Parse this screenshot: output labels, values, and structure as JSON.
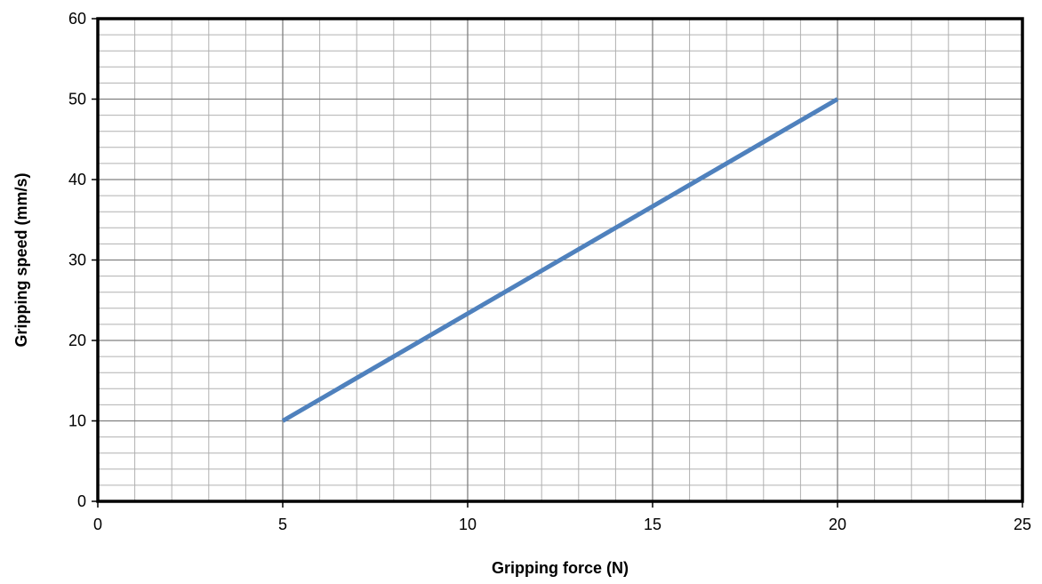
{
  "chart_data": {
    "type": "line",
    "xlabel": "Gripping force (N)",
    "ylabel": "Gripping speed (mm/s)",
    "xlim": [
      0,
      25
    ],
    "ylim": [
      0,
      60
    ],
    "x_ticks": [
      0,
      5,
      10,
      15,
      20,
      25
    ],
    "y_ticks": [
      0,
      10,
      20,
      30,
      40,
      50,
      60
    ],
    "x_tick_labels": [
      "0",
      "5",
      "10",
      "15",
      "20",
      "25"
    ],
    "y_tick_labels": [
      "0",
      "10",
      "20",
      "30",
      "40",
      "50",
      "60"
    ],
    "x_major_step": 5,
    "x_minor_step": 1,
    "y_major_step": 10,
    "y_minor_step": 2,
    "grid": true,
    "legend": "none",
    "series": [
      {
        "x": [
          5,
          20
        ],
        "y": [
          10,
          50
        ],
        "color": "#4f81bd"
      }
    ]
  }
}
